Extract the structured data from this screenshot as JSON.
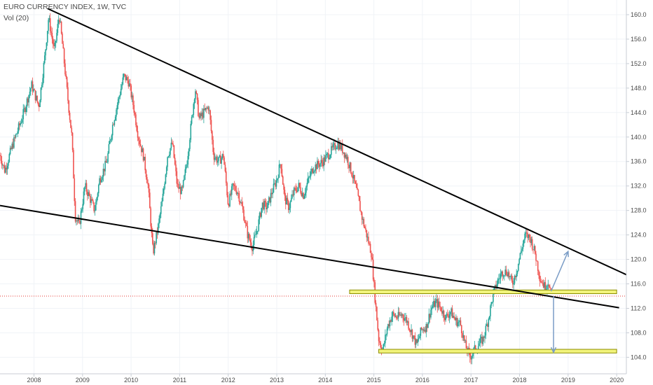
{
  "header": {
    "title": "EURO CURRENCY INDEX, 1W, TVC",
    "volume_label": "Vol (20)"
  },
  "colors": {
    "up": "#26a69a",
    "down": "#ef5350",
    "trendline": "#000000",
    "zone_fill": "#f2f47c",
    "zone_stroke": "#8d8d00",
    "arrow": "#7a9cc6",
    "price_line": "#e53935",
    "grid": "#f0f3f7",
    "axis_text": "#4a4a4a"
  },
  "chart_data": {
    "type": "candlestick",
    "title": "EURO CURRENCY INDEX, 1W, TVC",
    "indicator": "Vol (20)",
    "x_tick_labels": [
      "2008",
      "2009",
      "2010",
      "2011",
      "2012",
      "2013",
      "2014",
      "2015",
      "2016",
      "2017",
      "2018",
      "2019",
      "2020"
    ],
    "y_tick_labels": [
      "104.0",
      "108.0",
      "112.0",
      "116.0",
      "120.0",
      "124.0",
      "128.0",
      "132.0",
      "136.0",
      "140.0",
      "144.0",
      "148.0",
      "152.0",
      "156.0",
      "160.0"
    ],
    "xlim": [
      2007.3,
      2020.2
    ],
    "ylim": [
      101.3,
      162.4
    ],
    "grid": true,
    "price_path": [
      [
        2007.3,
        137.0
      ],
      [
        2007.4,
        134.5
      ],
      [
        2007.55,
        138.5
      ],
      [
        2007.75,
        143.0
      ],
      [
        2007.95,
        148.5
      ],
      [
        2008.1,
        145.0
      ],
      [
        2008.22,
        153.0
      ],
      [
        2008.3,
        159.5
      ],
      [
        2008.42,
        154.0
      ],
      [
        2008.52,
        160.0
      ],
      [
        2008.6,
        154.0
      ],
      [
        2008.7,
        146.0
      ],
      [
        2008.78,
        140.0
      ],
      [
        2008.85,
        127.0
      ],
      [
        2008.93,
        125.5
      ],
      [
        2009.05,
        132.0
      ],
      [
        2009.15,
        130.0
      ],
      [
        2009.25,
        128.0
      ],
      [
        2009.35,
        133.0
      ],
      [
        2009.5,
        136.0
      ],
      [
        2009.62,
        142.0
      ],
      [
        2009.75,
        146.5
      ],
      [
        2009.85,
        150.0
      ],
      [
        2009.95,
        149.0
      ],
      [
        2010.05,
        145.0
      ],
      [
        2010.15,
        140.0
      ],
      [
        2010.25,
        137.0
      ],
      [
        2010.35,
        132.0
      ],
      [
        2010.45,
        121.0
      ],
      [
        2010.55,
        125.0
      ],
      [
        2010.65,
        130.0
      ],
      [
        2010.75,
        137.0
      ],
      [
        2010.85,
        139.0
      ],
      [
        2010.95,
        132.0
      ],
      [
        2011.05,
        131.0
      ],
      [
        2011.15,
        136.0
      ],
      [
        2011.25,
        143.0
      ],
      [
        2011.32,
        148.0
      ],
      [
        2011.4,
        143.0
      ],
      [
        2011.5,
        144.0
      ],
      [
        2011.6,
        145.0
      ],
      [
        2011.7,
        137.0
      ],
      [
        2011.8,
        136.0
      ],
      [
        2011.9,
        137.0
      ],
      [
        2012.0,
        129.0
      ],
      [
        2012.1,
        132.0
      ],
      [
        2012.2,
        131.0
      ],
      [
        2012.3,
        128.0
      ],
      [
        2012.4,
        124.0
      ],
      [
        2012.5,
        122.0
      ],
      [
        2012.6,
        125.0
      ],
      [
        2012.7,
        129.0
      ],
      [
        2012.8,
        128.5
      ],
      [
        2012.9,
        131.0
      ],
      [
        2013.0,
        133.0
      ],
      [
        2013.08,
        136.0
      ],
      [
        2013.16,
        130.0
      ],
      [
        2013.25,
        128.5
      ],
      [
        2013.35,
        131.0
      ],
      [
        2013.45,
        132.0
      ],
      [
        2013.55,
        130.5
      ],
      [
        2013.65,
        133.0
      ],
      [
        2013.75,
        135.0
      ],
      [
        2013.85,
        135.5
      ],
      [
        2013.95,
        136.0
      ],
      [
        2014.05,
        137.0
      ],
      [
        2014.15,
        138.0
      ],
      [
        2014.25,
        139.0
      ],
      [
        2014.35,
        138.0
      ],
      [
        2014.45,
        136.5
      ],
      [
        2014.55,
        134.0
      ],
      [
        2014.65,
        131.0
      ],
      [
        2014.75,
        127.0
      ],
      [
        2014.85,
        124.0
      ],
      [
        2014.95,
        121.0
      ],
      [
        2015.02,
        114.0
      ],
      [
        2015.1,
        107.0
      ],
      [
        2015.18,
        105.0
      ],
      [
        2015.28,
        109.0
      ],
      [
        2015.38,
        111.0
      ],
      [
        2015.48,
        110.5
      ],
      [
        2015.58,
        111.0
      ],
      [
        2015.68,
        110.0
      ],
      [
        2015.78,
        108.0
      ],
      [
        2015.88,
        106.0
      ],
      [
        2015.98,
        108.5
      ],
      [
        2016.08,
        109.0
      ],
      [
        2016.18,
        112.0
      ],
      [
        2016.28,
        113.0
      ],
      [
        2016.38,
        112.0
      ],
      [
        2016.48,
        110.5
      ],
      [
        2016.58,
        111.5
      ],
      [
        2016.68,
        110.0
      ],
      [
        2016.78,
        109.5
      ],
      [
        2016.88,
        106.0
      ],
      [
        2016.98,
        104.0
      ],
      [
        2017.05,
        105.0
      ],
      [
        2017.15,
        106.0
      ],
      [
        2017.25,
        107.0
      ],
      [
        2017.35,
        110.0
      ],
      [
        2017.45,
        114.0
      ],
      [
        2017.55,
        116.5
      ],
      [
        2017.65,
        118.0
      ],
      [
        2017.75,
        118.0
      ],
      [
        2017.85,
        116.0
      ],
      [
        2017.95,
        118.5
      ],
      [
        2018.05,
        122.0
      ],
      [
        2018.12,
        124.0
      ],
      [
        2018.22,
        123.5
      ],
      [
        2018.32,
        121.0
      ],
      [
        2018.42,
        117.0
      ],
      [
        2018.52,
        115.5
      ],
      [
        2018.6,
        116.5
      ],
      [
        2018.65,
        114.0
      ]
    ],
    "trendlines": [
      {
        "name": "upper-trendline",
        "points": [
          [
            2008.28,
            161.0
          ],
          [
            2020.2,
            117.5
          ]
        ]
      },
      {
        "name": "lower-trendline",
        "points": [
          [
            2007.3,
            128.8
          ],
          [
            2020.05,
            112.1
          ]
        ]
      }
    ],
    "zones": [
      {
        "name": "resistance-zone",
        "x": [
          2014.5,
          2020.0
        ],
        "y": [
          114.4,
          115.0
        ]
      },
      {
        "name": "support-zone",
        "x": [
          2015.1,
          2020.0
        ],
        "y": [
          104.7,
          105.3
        ]
      }
    ],
    "arrows": [
      {
        "name": "up-arrow",
        "from": [
          2018.65,
          114.8
        ],
        "to": [
          2019.0,
          121.3
        ]
      },
      {
        "name": "down-arrow",
        "from": [
          2018.7,
          114.0
        ],
        "to": [
          2018.7,
          104.8
        ]
      }
    ],
    "current_price": 114.0
  }
}
